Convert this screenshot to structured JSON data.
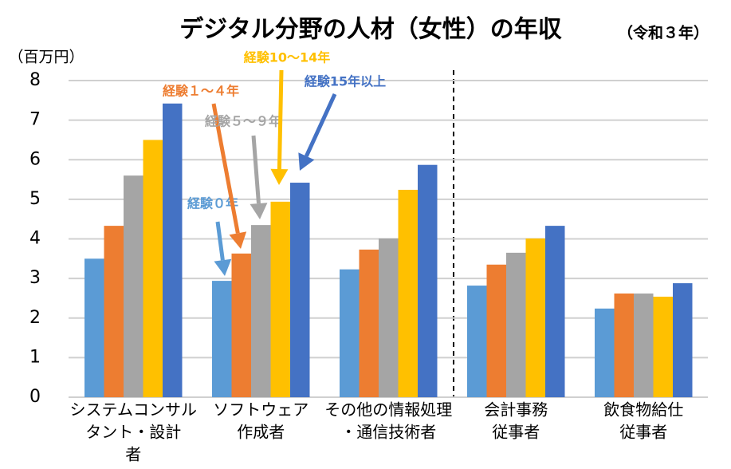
{
  "chart_data": {
    "type": "bar",
    "title": "デジタル分野の人材（女性）の年収",
    "subtitle": "（令和３年）",
    "y_label": "（百万円）",
    "categories": [
      [
        "システムコンサル",
        "タント・設計",
        "者"
      ],
      [
        "ソフトウェア",
        "作成者"
      ],
      [
        "その他の情報処理",
        "・通信技術者"
      ],
      [
        "会計事務",
        "従事者"
      ],
      [
        "飲食物給仕",
        "従事者"
      ]
    ],
    "series": [
      {
        "name": "経験０年",
        "color": "#5b9bd5",
        "values": [
          3.5,
          2.94,
          3.23,
          2.82,
          2.24
        ]
      },
      {
        "name": "経験１～４年",
        "color": "#ed7d31",
        "values": [
          4.33,
          3.63,
          3.73,
          3.35,
          2.62
        ]
      },
      {
        "name": "経験５～９年",
        "color": "#a5a5a5",
        "values": [
          5.6,
          4.35,
          4.01,
          3.65,
          2.62
        ]
      },
      {
        "name": "経験10～14年",
        "color": "#ffc000",
        "values": [
          6.5,
          4.94,
          5.24,
          4.01,
          2.54
        ]
      },
      {
        "name": "経験15年以上",
        "color": "#4472c4",
        "values": [
          7.42,
          5.42,
          5.87,
          4.33,
          2.88
        ]
      }
    ],
    "ylim": [
      0,
      8
    ],
    "yticks": [
      0,
      1,
      2,
      3,
      4,
      5,
      6,
      7,
      8
    ],
    "grid": true
  }
}
